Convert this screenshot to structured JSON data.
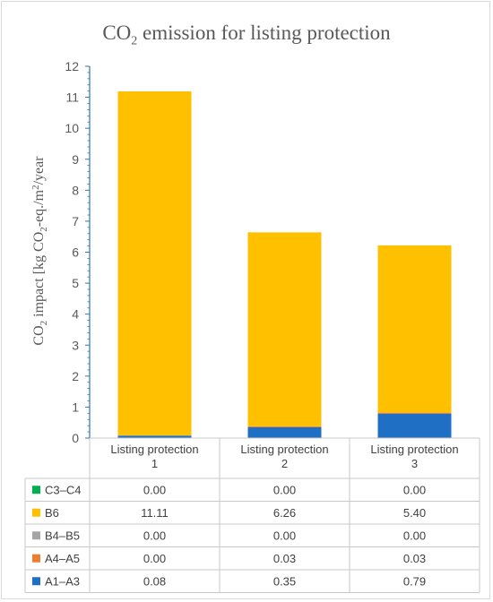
{
  "chart_data": {
    "type": "bar",
    "stacked": true,
    "title_parts": [
      "CO",
      "2",
      " emission for listing protection"
    ],
    "ylabel_parts": [
      "CO",
      "2",
      " impact [kg CO",
      "2",
      "-eq./m",
      "2",
      "/year"
    ],
    "ylim": [
      0,
      12
    ],
    "yticks": [
      0,
      1,
      2,
      3,
      4,
      5,
      6,
      7,
      8,
      9,
      10,
      11,
      12
    ],
    "categories": [
      [
        "Listing protection",
        "1"
      ],
      [
        "Listing protection",
        "2"
      ],
      [
        "Listing protection",
        "3"
      ]
    ],
    "data_table": true,
    "series": [
      {
        "name": "A1–A3",
        "color": "#1f6fc4",
        "values": [
          0.08,
          0.35,
          0.79
        ],
        "labels": [
          "0.08",
          "0.35",
          "0.79"
        ]
      },
      {
        "name": "A4–A5",
        "color": "#ed7d31",
        "values": [
          0.0,
          0.03,
          0.03
        ],
        "labels": [
          "0.00",
          "0.03",
          "0.03"
        ]
      },
      {
        "name": "B4–B5",
        "color": "#a5a5a5",
        "values": [
          0.0,
          0.0,
          0.0
        ],
        "labels": [
          "0.00",
          "0.00",
          "0.00"
        ]
      },
      {
        "name": "B6",
        "color": "#ffc000",
        "values": [
          11.11,
          6.26,
          5.4
        ],
        "labels": [
          "11.11",
          "6.26",
          "5.40"
        ]
      },
      {
        "name": "C3–C4",
        "color": "#00b050",
        "values": [
          0.0,
          0.0,
          0.0
        ],
        "labels": [
          "0.00",
          "0.00",
          "0.00"
        ]
      }
    ]
  }
}
